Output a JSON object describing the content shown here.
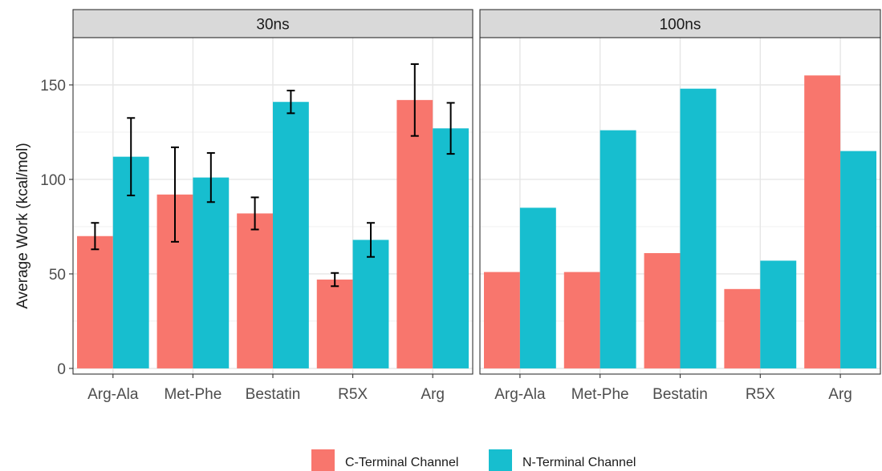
{
  "chart_data": {
    "type": "bar",
    "ylabel": "Average Work (kcal/mol)",
    "ylim": [
      -3,
      175
    ],
    "yticks": [
      0,
      50,
      100,
      150
    ],
    "categories": [
      "Arg-Ala",
      "Met-Phe",
      "Bestatin",
      "R5X",
      "Arg"
    ],
    "grid": true,
    "legend_position": "bottom",
    "series_names": [
      "C-Terminal Channel",
      "N-Terminal Channel"
    ],
    "colors": [
      "#F8766D",
      "#17BECF"
    ],
    "panels": [
      {
        "label": "30ns",
        "series": [
          {
            "name": "C-Terminal Channel",
            "values": [
              70,
              92,
              82,
              47,
              142
            ],
            "error": [
              7,
              25,
              8.5,
              3.5,
              19
            ]
          },
          {
            "name": "N-Terminal Channel",
            "values": [
              112,
              101,
              141,
              68,
              127
            ],
            "error": [
              20.5,
              13,
              6,
              9,
              13.5
            ]
          }
        ]
      },
      {
        "label": "100ns",
        "series": [
          {
            "name": "C-Terminal Channel",
            "values": [
              51,
              51,
              61,
              42,
              155
            ]
          },
          {
            "name": "N-Terminal Channel",
            "values": [
              85,
              126,
              148,
              57,
              115
            ]
          }
        ]
      }
    ]
  }
}
